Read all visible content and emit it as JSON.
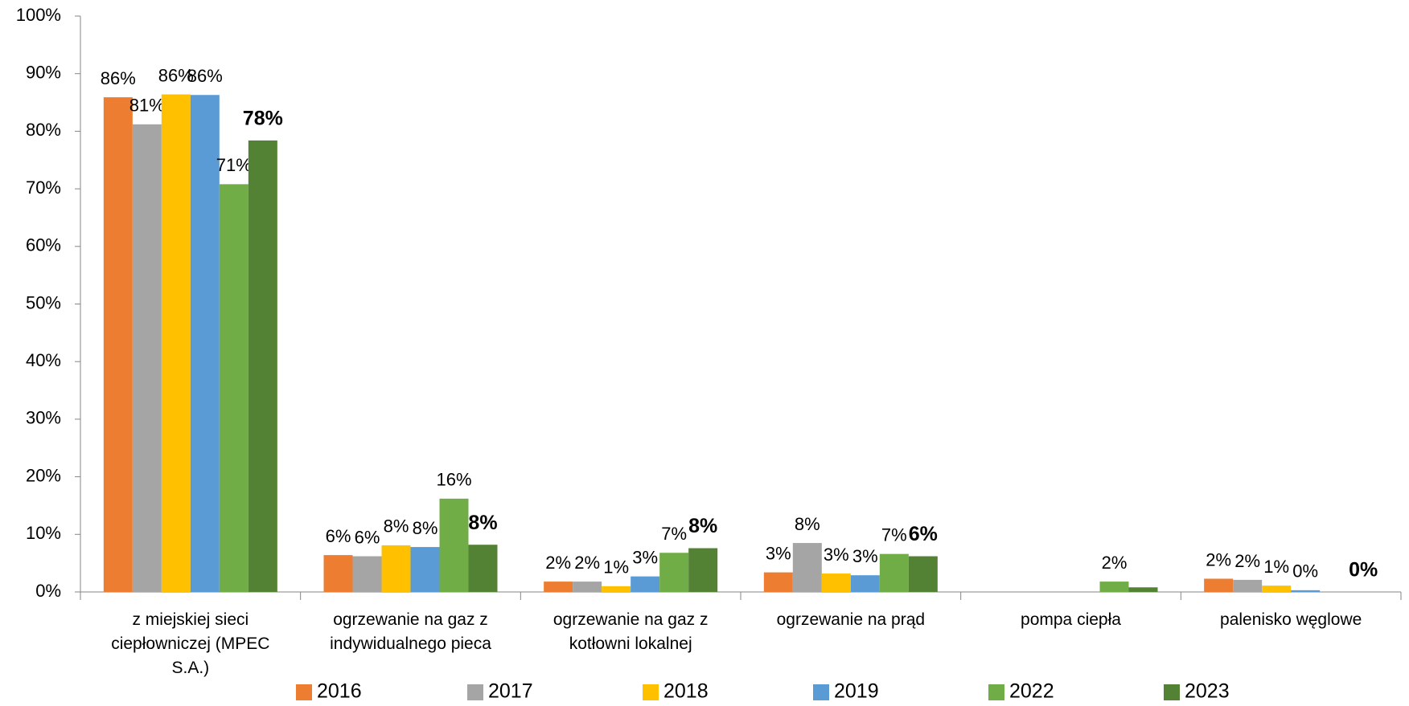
{
  "chart_data": {
    "type": "bar",
    "categories": [
      "z miejskiej sieci ciepłowniczej (MPEC S.A.)",
      "ogrzewanie na gaz z indywidualnego pieca",
      "ogrzewanie na gaz z kotłowni lokalnej",
      "ogrzewanie na prąd",
      "pompa ciepła",
      "palenisko węglowe"
    ],
    "series": [
      {
        "name": "2016",
        "color": "#ed7d31",
        "values": [
          85.9,
          6.4,
          1.8,
          3.4,
          null,
          2.3
        ],
        "value_labels": [
          "86%",
          "6%",
          "2%",
          "3%",
          null,
          "2%"
        ]
      },
      {
        "name": "2017",
        "color": "#a5a5a5",
        "values": [
          81.2,
          6.2,
          1.8,
          8.5,
          null,
          2.1
        ],
        "value_labels": [
          "81%",
          "6%",
          "2%",
          "8%",
          null,
          "2%"
        ]
      },
      {
        "name": "2018",
        "color": "#ffc000",
        "values": [
          86.4,
          8.1,
          1.0,
          3.2,
          null,
          1.1
        ],
        "value_labels": [
          "86%",
          "8%",
          "1%",
          "3%",
          null,
          "1%"
        ]
      },
      {
        "name": "2019",
        "color": "#5b9bd5",
        "values": [
          86.3,
          7.8,
          2.7,
          2.9,
          null,
          0.3
        ],
        "value_labels": [
          "86%",
          "8%",
          "3%",
          "3%",
          null,
          "0%"
        ]
      },
      {
        "name": "2022",
        "color": "#70ad47",
        "values": [
          70.8,
          16.2,
          6.8,
          6.6,
          1.8,
          null
        ],
        "value_labels": [
          "71%",
          "16%",
          "7%",
          "7%",
          "2%",
          null
        ]
      },
      {
        "name": "2023",
        "color": "#548235",
        "values": [
          78.4,
          8.2,
          7.6,
          6.2,
          0.8,
          0
        ],
        "value_labels": [
          "78%",
          "8%",
          "8%",
          "6%",
          null,
          "0%"
        ]
      }
    ],
    "ylim": [
      0,
      100
    ],
    "yticks": [
      {
        "value": 0,
        "label": "0%"
      },
      {
        "value": 10,
        "label": "10%"
      },
      {
        "value": 20,
        "label": "20%"
      },
      {
        "value": 30,
        "label": "30%"
      },
      {
        "value": 40,
        "label": "40%"
      },
      {
        "value": 50,
        "label": "50%"
      },
      {
        "value": 60,
        "label": "60%"
      },
      {
        "value": 70,
        "label": "70%"
      },
      {
        "value": 80,
        "label": "80%"
      },
      {
        "value": 90,
        "label": "90%"
      },
      {
        "value": 100,
        "label": "100%"
      }
    ],
    "grid": false,
    "legend": "bottom"
  }
}
